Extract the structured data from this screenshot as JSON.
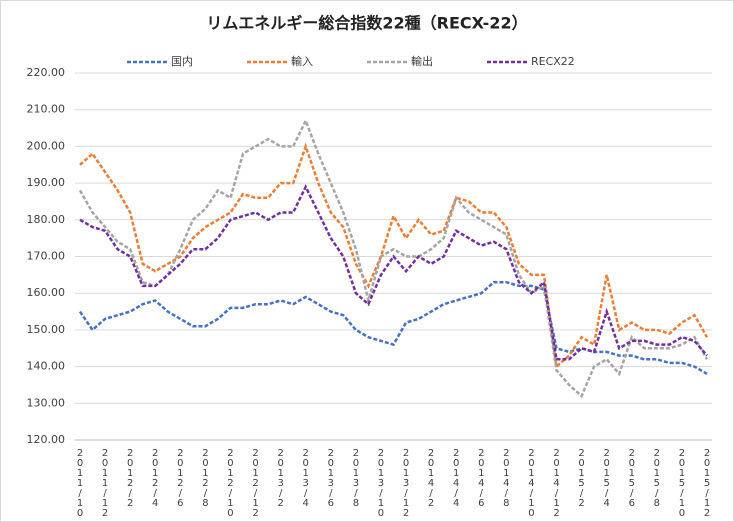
{
  "chart_data": {
    "type": "line",
    "title": "リムエネルギー総合指数22種（RECX-22）",
    "categories": [
      "2011/10",
      null,
      "2011/12",
      null,
      "2012/2",
      null,
      "2012/4",
      null,
      "2012/6",
      null,
      "2012/8",
      null,
      "2012/10",
      null,
      "2012/12",
      null,
      "2013/2",
      null,
      "2013/4",
      null,
      "2013/6",
      null,
      "2013/8",
      null,
      "2013/10",
      null,
      "2013/12",
      null,
      "2014/2",
      null,
      "2014/4",
      null,
      "2014/6",
      null,
      "2014/8",
      null,
      "2014/10",
      null,
      "2014/12",
      null,
      "2015/2",
      null,
      "2015/4",
      null,
      "2015/6",
      null,
      "2015/8",
      null,
      "2015/10",
      null,
      "2015/12"
    ],
    "series": [
      {
        "name": "国内",
        "color": "#4472c4",
        "values": [
          155,
          150,
          153,
          154,
          155,
          157,
          158,
          155,
          153,
          151,
          151,
          153,
          156,
          156,
          157,
          157,
          158,
          157,
          159,
          157,
          155,
          154,
          150,
          148,
          147,
          146,
          152,
          153,
          155,
          157,
          158,
          159,
          160,
          163,
          163,
          162,
          162,
          161,
          145,
          144,
          145,
          144,
          144,
          143,
          143,
          142,
          142,
          141,
          141,
          140,
          138
        ]
      },
      {
        "name": "輸入",
        "color": "#ed7d31",
        "values": [
          195,
          198,
          193,
          188,
          182,
          168,
          166,
          168,
          170,
          175,
          178,
          180,
          182,
          187,
          186,
          186,
          190,
          190,
          200,
          190,
          182,
          178,
          168,
          162,
          170,
          181,
          175,
          180,
          176,
          177,
          186,
          185,
          182,
          182,
          178,
          168,
          165,
          165,
          140,
          143,
          148,
          146,
          165,
          150,
          152,
          150,
          150,
          149,
          152,
          154,
          148
        ]
      },
      {
        "name": "輸出",
        "color": "#a5a5a5",
        "values": [
          188,
          182,
          178,
          174,
          172,
          163,
          162,
          165,
          172,
          180,
          183,
          188,
          186,
          198,
          200,
          202,
          200,
          200,
          207,
          198,
          190,
          182,
          172,
          158,
          170,
          172,
          170,
          170,
          172,
          175,
          186,
          182,
          180,
          178,
          176,
          165,
          160,
          162,
          139,
          135,
          132,
          140,
          142,
          138,
          148,
          145,
          145,
          145,
          146,
          148,
          142
        ]
      },
      {
        "name": "RECX22",
        "color": "#7030a0",
        "values": [
          180,
          178,
          177,
          172,
          170,
          162,
          162,
          165,
          168,
          172,
          172,
          175,
          180,
          181,
          182,
          180,
          182,
          182,
          189,
          182,
          175,
          170,
          160,
          157,
          165,
          170,
          166,
          170,
          168,
          170,
          177,
          175,
          173,
          174,
          172,
          163,
          160,
          163,
          142,
          142,
          145,
          144,
          155,
          145,
          147,
          147,
          146,
          146,
          148,
          147,
          143
        ]
      }
    ],
    "ylim": [
      120,
      220
    ],
    "yticks": [
      {
        "value": 120,
        "label": "120.00"
      },
      {
        "value": 130,
        "label": "130.00"
      },
      {
        "value": 140,
        "label": "140.00"
      },
      {
        "value": 150,
        "label": "150.00"
      },
      {
        "value": 160,
        "label": "160.00"
      },
      {
        "value": 170,
        "label": "170.00"
      },
      {
        "value": 180,
        "label": "180.00"
      },
      {
        "value": 190,
        "label": "190.00"
      },
      {
        "value": 200,
        "label": "200.00"
      },
      {
        "value": 210,
        "label": "210.00"
      },
      {
        "value": 220,
        "label": "220.00"
      }
    ],
    "grid": true,
    "legend": "top"
  }
}
